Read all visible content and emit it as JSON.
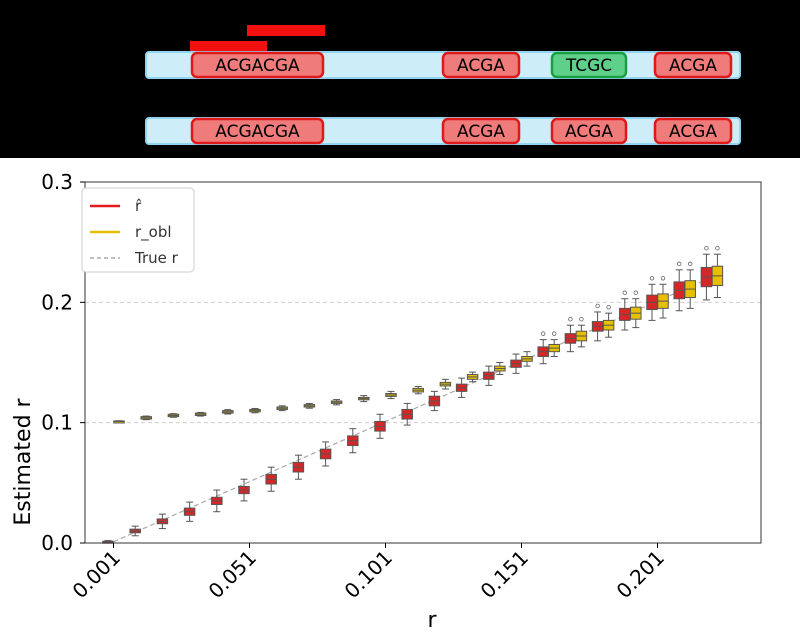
{
  "diagram": {
    "strand_top": [
      "ACGACGA",
      "ACGA",
      "TCGC",
      "ACGA"
    ],
    "strand_top_kinds": [
      "match",
      "match",
      "mismatch",
      "match"
    ],
    "strand_bottom": [
      "ACGACGA",
      "ACGA",
      "ACGA",
      "ACGA"
    ],
    "strand_bottom_kinds": [
      "match",
      "match",
      "match",
      "match"
    ],
    "colors": {
      "match": "#f07b7b",
      "match_border": "#e01818",
      "mismatch": "#5fd08a",
      "mismatch_border": "#18a040",
      "strand": "#cdeef8",
      "strand_border": "#8fd3ee",
      "read_bar": "#f21010"
    }
  },
  "chart_data": {
    "type": "box",
    "xlabel": "r",
    "ylabel": "Estimated r",
    "ylim": [
      0,
      0.3
    ],
    "yticks": [
      "0.0",
      "0.1",
      "0.2",
      "0.3"
    ],
    "xticks": [
      "0.001",
      "0.051",
      "0.101",
      "0.151",
      "0.201"
    ],
    "grid": "horizontal dashed",
    "legend_position": "top-left",
    "true_r": [
      0.001,
      0.011,
      0.021,
      0.031,
      0.041,
      0.051,
      0.061,
      0.071,
      0.081,
      0.091,
      0.101,
      0.111,
      0.121,
      0.131,
      0.141,
      0.151,
      0.161,
      0.171,
      0.181,
      0.191,
      0.201,
      0.211,
      0.221
    ],
    "series": [
      {
        "name": "r̂",
        "color": "#d62728",
        "medians": [
          0.001,
          0.01,
          0.018,
          0.026,
          0.035,
          0.044,
          0.053,
          0.063,
          0.074,
          0.085,
          0.097,
          0.107,
          0.118,
          0.129,
          0.139,
          0.149,
          0.159,
          0.17,
          0.18,
          0.19,
          0.2,
          0.21,
          0.221
        ],
        "box_half": [
          0.0005,
          0.0015,
          0.002,
          0.003,
          0.003,
          0.003,
          0.004,
          0.004,
          0.004,
          0.004,
          0.004,
          0.004,
          0.004,
          0.003,
          0.003,
          0.003,
          0.004,
          0.004,
          0.004,
          0.005,
          0.006,
          0.007,
          0.008
        ],
        "whisker_half": [
          0.001,
          0.004,
          0.006,
          0.008,
          0.009,
          0.009,
          0.01,
          0.01,
          0.01,
          0.01,
          0.01,
          0.009,
          0.008,
          0.008,
          0.008,
          0.008,
          0.01,
          0.011,
          0.012,
          0.013,
          0.015,
          0.017,
          0.019
        ]
      },
      {
        "name": "r_obl",
        "color": "#e6c000",
        "medians": [
          0.101,
          0.104,
          0.106,
          0.107,
          0.109,
          0.11,
          0.112,
          0.114,
          0.117,
          0.12,
          0.123,
          0.127,
          0.132,
          0.138,
          0.145,
          0.153,
          0.162,
          0.172,
          0.181,
          0.191,
          0.201,
          0.211,
          0.222
        ],
        "box_half": [
          0.0004,
          0.001,
          0.001,
          0.001,
          0.001,
          0.001,
          0.001,
          0.001,
          0.001,
          0.001,
          0.0012,
          0.0015,
          0.0015,
          0.002,
          0.002,
          0.002,
          0.003,
          0.004,
          0.004,
          0.005,
          0.006,
          0.007,
          0.008
        ],
        "whisker_half": [
          0.0006,
          0.0015,
          0.0015,
          0.0015,
          0.0018,
          0.0018,
          0.002,
          0.002,
          0.0022,
          0.0025,
          0.003,
          0.003,
          0.004,
          0.004,
          0.005,
          0.006,
          0.007,
          0.009,
          0.01,
          0.012,
          0.014,
          0.016,
          0.018
        ]
      }
    ],
    "legend": [
      {
        "label": "r̂",
        "color": "#e41a1c",
        "style": "solid"
      },
      {
        "label": "r_obl",
        "color": "#e6c000",
        "style": "solid"
      },
      {
        "label": "True r",
        "color": "#999999",
        "style": "dashed"
      }
    ]
  }
}
